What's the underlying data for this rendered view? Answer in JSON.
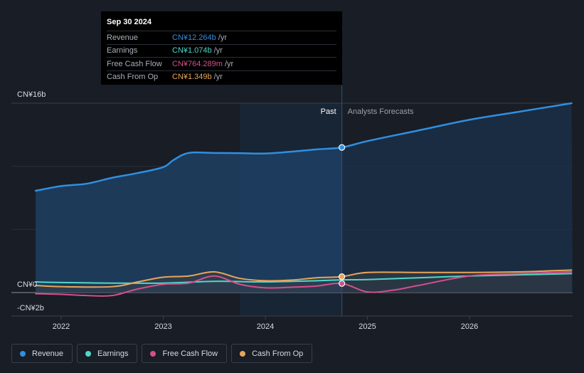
{
  "chart_data": {
    "type": "line",
    "x_ticks": [
      "2022",
      "2023",
      "2024",
      "2025",
      "2026"
    ],
    "y_ticks": [
      "CN¥16b",
      "CN¥0",
      "-CN¥2b"
    ],
    "ylim": [
      -2,
      16
    ],
    "xlim": [
      2021.6,
      2027.0
    ],
    "past_label": "Past",
    "forecast_label": "Analysts Forecasts",
    "past_end_x": 2024.75,
    "legend_position": "bottom-left",
    "series": [
      {
        "name": "Revenue",
        "color": "#2f8fe0",
        "points": [
          [
            2021.75,
            8.6
          ],
          [
            2022.0,
            9.0
          ],
          [
            2022.25,
            9.2
          ],
          [
            2022.5,
            9.7
          ],
          [
            2022.75,
            10.1
          ],
          [
            2023.0,
            10.6
          ],
          [
            2023.1,
            11.2
          ],
          [
            2023.25,
            11.8
          ],
          [
            2023.5,
            11.8
          ],
          [
            2023.75,
            11.78
          ],
          [
            2024.0,
            11.75
          ],
          [
            2024.25,
            11.9
          ],
          [
            2024.5,
            12.1
          ],
          [
            2024.75,
            12.264
          ]
        ],
        "forecast": [
          [
            2024.75,
            12.264
          ],
          [
            2025.0,
            12.8
          ],
          [
            2025.5,
            13.7
          ],
          [
            2026.0,
            14.6
          ],
          [
            2026.5,
            15.3
          ],
          [
            2027.0,
            16.0
          ]
        ]
      },
      {
        "name": "Earnings",
        "color": "#4fd8c8",
        "points": [
          [
            2021.75,
            0.9
          ],
          [
            2022.0,
            0.85
          ],
          [
            2022.5,
            0.8
          ],
          [
            2023.0,
            0.8
          ],
          [
            2023.5,
            0.95
          ],
          [
            2024.0,
            0.9
          ],
          [
            2024.5,
            1.0
          ],
          [
            2024.75,
            1.074
          ]
        ],
        "forecast": [
          [
            2024.75,
            1.074
          ],
          [
            2025.0,
            1.1
          ],
          [
            2025.5,
            1.25
          ],
          [
            2026.0,
            1.4
          ],
          [
            2026.5,
            1.5
          ],
          [
            2027.0,
            1.6
          ]
        ]
      },
      {
        "name": "Free Cash Flow",
        "color": "#d3508a",
        "points": [
          [
            2021.75,
            -0.1
          ],
          [
            2022.0,
            -0.15
          ],
          [
            2022.25,
            -0.25
          ],
          [
            2022.5,
            -0.25
          ],
          [
            2022.75,
            0.3
          ],
          [
            2023.0,
            0.7
          ],
          [
            2023.25,
            0.8
          ],
          [
            2023.5,
            1.4
          ],
          [
            2023.75,
            0.7
          ],
          [
            2024.0,
            0.4
          ],
          [
            2024.25,
            0.45
          ],
          [
            2024.5,
            0.55
          ],
          [
            2024.75,
            0.764289
          ]
        ],
        "forecast": [
          [
            2024.75,
            0.764289
          ],
          [
            2025.0,
            0.05
          ],
          [
            2025.25,
            0.2
          ],
          [
            2025.5,
            0.6
          ],
          [
            2026.0,
            1.4
          ],
          [
            2026.5,
            1.6
          ],
          [
            2027.0,
            1.75
          ]
        ]
      },
      {
        "name": "Cash From Op",
        "color": "#e8a65a",
        "points": [
          [
            2021.75,
            0.6
          ],
          [
            2022.0,
            0.5
          ],
          [
            2022.5,
            0.5
          ],
          [
            2022.75,
            0.9
          ],
          [
            2023.0,
            1.3
          ],
          [
            2023.25,
            1.4
          ],
          [
            2023.5,
            1.75
          ],
          [
            2023.75,
            1.2
          ],
          [
            2024.0,
            1.0
          ],
          [
            2024.25,
            1.05
          ],
          [
            2024.5,
            1.25
          ],
          [
            2024.75,
            1.349
          ]
        ],
        "forecast": [
          [
            2024.75,
            1.349
          ],
          [
            2025.0,
            1.7
          ],
          [
            2025.5,
            1.7
          ],
          [
            2026.0,
            1.7
          ],
          [
            2026.5,
            1.75
          ],
          [
            2027.0,
            1.9
          ]
        ]
      }
    ]
  },
  "tooltip": {
    "date": "Sep 30 2024",
    "rows": [
      {
        "label": "Revenue",
        "value": "CN¥12.264b",
        "unit": "/yr",
        "color": "#2f8fe0"
      },
      {
        "label": "Earnings",
        "value": "CN¥1.074b",
        "unit": "/yr",
        "color": "#4fd8c8"
      },
      {
        "label": "Free Cash Flow",
        "value": "CN¥764.289m",
        "unit": "/yr",
        "color": "#d3508a"
      },
      {
        "label": "Cash From Op",
        "value": "CN¥1.349b",
        "unit": "/yr",
        "color": "#e8a65a"
      }
    ]
  },
  "legend": [
    {
      "label": "Revenue",
      "color": "#2f8fe0"
    },
    {
      "label": "Earnings",
      "color": "#4fd8c8"
    },
    {
      "label": "Free Cash Flow",
      "color": "#d3508a"
    },
    {
      "label": "Cash From Op",
      "color": "#e8a65a"
    }
  ]
}
